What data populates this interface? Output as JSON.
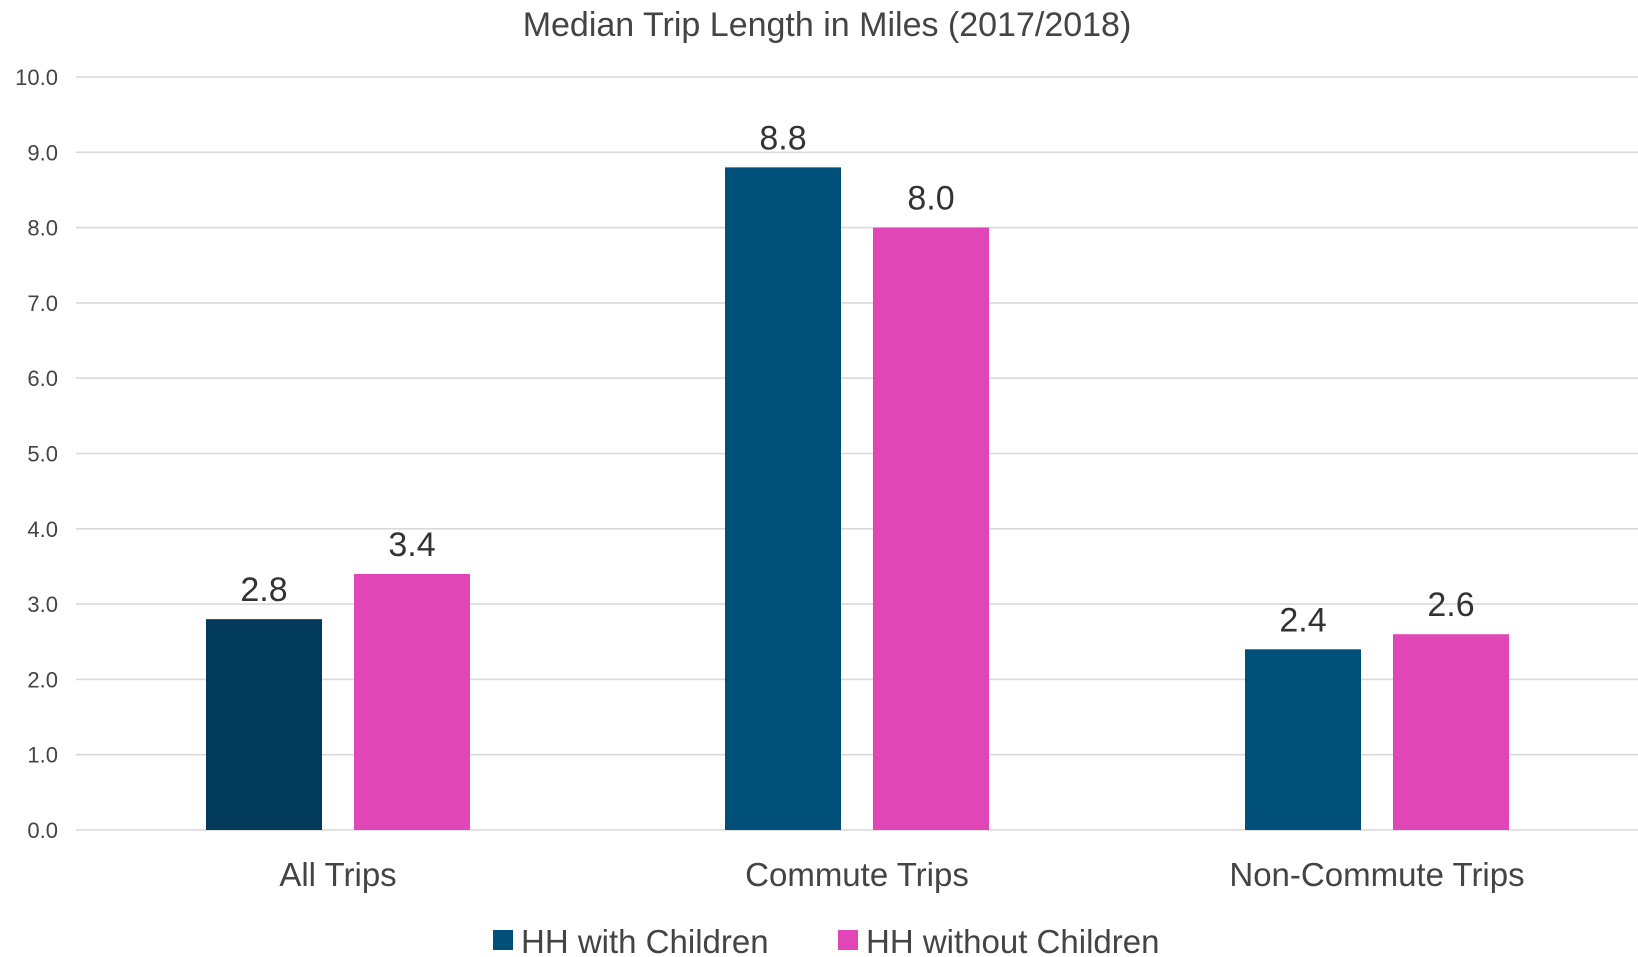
{
  "chart_data": {
    "type": "bar",
    "title": "Median Trip Length in Miles (2017/2018)",
    "xlabel": "",
    "ylabel": "",
    "categories": [
      "All Trips",
      "Commute Trips",
      "Non-Commute Trips"
    ],
    "series": [
      {
        "name": "HH with Children",
        "values": [
          2.8,
          8.8,
          2.4
        ],
        "labels": [
          "2.8",
          "8.8",
          "2.4"
        ],
        "color": "#00507a"
      },
      {
        "name": "HH without Children",
        "values": [
          3.4,
          8.0,
          2.6
        ],
        "labels": [
          "3.4",
          "8.0",
          "2.6"
        ],
        "color": "#e046b5"
      }
    ],
    "point_colors": {
      "0": [
        "#023a5a",
        "#00507a",
        "#00507a"
      ]
    },
    "ylim": [
      0,
      10
    ],
    "yticks": [
      0,
      1,
      2,
      3,
      4,
      5,
      6,
      7,
      8,
      9,
      10
    ],
    "ytick_labels": [
      "0.0",
      "1.0",
      "2.0",
      "3.0",
      "4.0",
      "5.0",
      "6.0",
      "7.0",
      "8.0",
      "9.0",
      "10.0"
    ],
    "grid": true,
    "legend_position": "bottom"
  }
}
